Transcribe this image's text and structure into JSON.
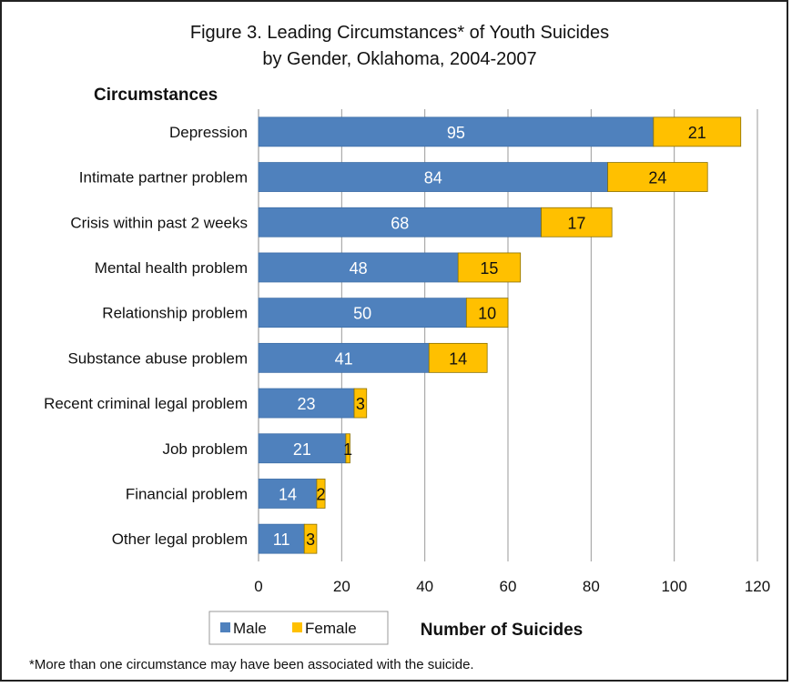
{
  "chart_data": {
    "type": "bar",
    "orientation": "horizontal",
    "stacked": true,
    "title": "Figure 3. Leading  Circumstances* of  Youth Suicides",
    "subtitle": "by Gender, Oklahoma, 2004-2007",
    "ylabel": "Circumstances",
    "xlabel": "Number of Suicides",
    "xlim": [
      0,
      120
    ],
    "xticks": [
      "0",
      "20",
      "40",
      "60",
      "80",
      "100",
      "120"
    ],
    "grid": true,
    "legend_position": "bottom-left",
    "categories": [
      "Depression",
      "Intimate partner problem",
      "Crisis within past 2 weeks",
      "Mental health problem",
      "Relationship problem",
      "Substance abuse problem",
      "Recent criminal legal problem",
      "Job problem",
      "Financial problem",
      "Other legal problem"
    ],
    "series": [
      {
        "name": "Male",
        "color": "#4F81BD",
        "values": [
          95,
          84,
          68,
          48,
          50,
          41,
          23,
          21,
          14,
          11
        ]
      },
      {
        "name": "Female",
        "color": "#FFC000",
        "values": [
          21,
          24,
          17,
          15,
          10,
          14,
          3,
          1,
          2,
          3
        ]
      }
    ],
    "footnote": "*More than one circumstance may have been associated with the suicide."
  }
}
